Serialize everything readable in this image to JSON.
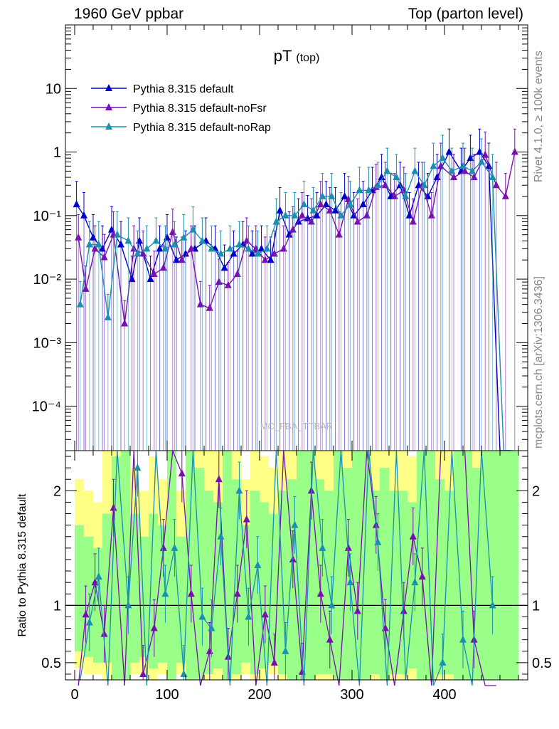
{
  "header": {
    "left": "1960 GeV ppbar",
    "right": "Top (parton level)"
  },
  "side_labels": {
    "rivet": "Rivet 4.1.0, ≥ 100k events",
    "mcplots": "mcplots.cern.ch [arXiv:1306.3436]"
  },
  "chart_data": [
    {
      "type": "line",
      "title": "pT (top)",
      "title_main": "pT",
      "title_sub": "(top)",
      "xlabel": "",
      "ylabel": "",
      "yscale": "log",
      "xlim": [
        -10,
        490
      ],
      "ylim": [
        2e-05,
        100
      ],
      "watermark": "MC_FBA_TTBAR",
      "ytick_values": [
        0.0001,
        0.001,
        0.01,
        0.1,
        1,
        10
      ],
      "ytick_labels": [
        "10⁻⁴",
        "10⁻³",
        "10⁻²",
        "10⁻¹",
        "1",
        "10"
      ],
      "legend": [
        "Pythia 8.315 default",
        "Pythia 8.315 default-noFsr",
        "Pythia 8.315 default-noRap"
      ],
      "colors": [
        "#0000cc",
        "#7a0fb0",
        "#1b8fb0"
      ],
      "series": [
        {
          "name": "Pythia 8.315 default",
          "x": [
            2,
            10,
            20,
            30,
            40,
            50,
            62,
            70,
            82,
            92,
            100,
            110,
            120,
            130,
            142,
            152,
            162,
            172,
            182,
            192,
            202,
            212,
            222,
            232,
            242,
            252,
            262,
            272,
            282,
            292,
            302,
            312,
            322,
            332,
            342,
            352,
            362,
            372,
            382,
            392,
            405,
            418,
            428,
            438,
            448,
            460,
            472
          ],
          "y": [
            0.15,
            0.1,
            0.045,
            0.03,
            0.06,
            0.035,
            0.01,
            0.04,
            0.01,
            0.03,
            0.045,
            0.02,
            0.025,
            0.03,
            0.04,
            0.03,
            0.015,
            0.025,
            0.035,
            0.025,
            0.03,
            0.02,
            0.12,
            0.05,
            0.08,
            0.09,
            0.1,
            0.15,
            0.12,
            0.2,
            0.1,
            0.15,
            0.25,
            0.4,
            0.2,
            0.3,
            0.1,
            0.3,
            0.2,
            0.4,
            1.0,
            0.5,
            0.8,
            1.0,
            0.6,
            0.0,
            0.0
          ]
        },
        {
          "name": "Pythia 8.315 default-noFsr",
          "x": [
            4,
            12,
            22,
            32,
            42,
            54,
            64,
            74,
            86,
            96,
            106,
            116,
            126,
            136,
            146,
            156,
            166,
            176,
            186,
            196,
            206,
            216,
            226,
            236,
            246,
            256,
            266,
            276,
            286,
            296,
            306,
            316,
            326,
            336,
            346,
            356,
            366,
            376,
            386,
            396,
            410,
            422,
            432,
            444,
            456,
            466,
            476
          ],
          "y": [
            0.045,
            0.007,
            0.03,
            0.022,
            0.05,
            0.002,
            0.03,
            0.025,
            0.012,
            0.015,
            0.055,
            0.02,
            0.03,
            0.004,
            0.0035,
            0.009,
            0.008,
            0.012,
            0.04,
            0.03,
            0.02,
            0.025,
            0.03,
            0.06,
            0.1,
            0.08,
            0.15,
            0.12,
            0.05,
            0.18,
            0.08,
            0.1,
            0.28,
            0.3,
            0.2,
            0.25,
            0.08,
            0.3,
            0.1,
            0.6,
            0.4,
            0.5,
            0.4,
            0.9,
            0.3,
            0.2,
            1.0
          ]
        },
        {
          "name": "Pythia 8.315 default-noRap",
          "x": [
            6,
            16,
            26,
            36,
            46,
            58,
            68,
            78,
            88,
            98,
            108,
            118,
            128,
            138,
            148,
            158,
            168,
            178,
            188,
            198,
            208,
            218,
            228,
            238,
            248,
            258,
            268,
            278,
            288,
            298,
            308,
            318,
            328,
            338,
            348,
            358,
            368,
            378,
            388,
            398,
            408,
            420,
            430,
            440,
            452,
            464,
            474
          ],
          "y": [
            0.004,
            0.035,
            0.035,
            0.0025,
            0.05,
            0.04,
            0.025,
            0.03,
            0.04,
            0.03,
            0.035,
            0.045,
            0.06,
            0.04,
            0.03,
            0.025,
            0.03,
            0.035,
            0.03,
            0.025,
            0.03,
            0.08,
            0.1,
            0.1,
            0.15,
            0.12,
            0.2,
            0.2,
            0.1,
            0.15,
            0.25,
            0.25,
            0.3,
            0.5,
            0.4,
            0.2,
            0.5,
            0.3,
            0.6,
            0.8,
            0.5,
            0.6,
            0.5,
            0.7,
            0.4,
            0.0,
            0.0
          ]
        }
      ]
    },
    {
      "type": "line",
      "title": "",
      "xlabel": "",
      "ylabel": "Ratio to Pythia 8.315 default",
      "xlim": [
        -10,
        490
      ],
      "ylim": [
        0.35,
        2.35
      ],
      "xtick_values": [
        0,
        100,
        200,
        300,
        400
      ],
      "xtick_labels": [
        "0",
        "100",
        "200",
        "300",
        "400"
      ],
      "ytick_values": [
        0.5,
        1,
        2
      ],
      "ytick_labels": [
        "0.5",
        "1",
        "2"
      ],
      "reference_line": 1,
      "band": {
        "x": [
          0,
          10,
          20,
          30,
          40,
          50,
          60,
          70,
          80,
          90,
          100,
          110,
          120,
          130,
          140,
          150,
          160,
          170,
          180,
          190,
          200,
          210,
          220,
          230,
          240,
          250,
          260,
          270,
          280,
          290,
          300,
          310,
          320,
          330,
          340,
          350,
          360,
          370,
          380,
          390,
          400,
          410,
          420,
          430,
          440,
          450,
          460,
          470
        ],
        "green_hi": [
          1.7,
          1.6,
          1.5,
          1.8,
          2.3,
          2.35,
          1.8,
          1.6,
          1.8,
          1.7,
          2.35,
          1.6,
          2.35,
          2.2,
          2.0,
          1.9,
          2.35,
          2.1,
          1.7,
          2.0,
          1.9,
          1.8,
          2.0,
          2.1,
          2.35,
          2.35,
          2.1,
          2.0,
          2.35,
          2.2,
          2.35,
          2.35,
          2.0,
          2.2,
          2.0,
          2.0,
          1.9,
          2.35,
          2.35,
          2.1,
          2.0,
          2.35,
          2.35,
          2.2,
          2.35,
          2.35,
          2.35,
          2.35
        ],
        "green_lo": [
          0.6,
          0.55,
          0.5,
          0.5,
          0.35,
          0.35,
          0.5,
          0.55,
          0.45,
          0.5,
          0.35,
          0.5,
          0.35,
          0.35,
          0.4,
          0.45,
          0.35,
          0.4,
          0.5,
          0.4,
          0.45,
          0.5,
          0.4,
          0.35,
          0.35,
          0.35,
          0.4,
          0.4,
          0.35,
          0.35,
          0.35,
          0.35,
          0.4,
          0.35,
          0.4,
          0.4,
          0.45,
          0.35,
          0.35,
          0.4,
          0.4,
          0.35,
          0.35,
          0.35,
          0.35,
          0.35,
          0.35,
          0.35
        ],
        "yellow_hi": [
          2.1,
          2.0,
          1.9,
          2.35,
          2.35,
          2.35,
          2.2,
          2.0,
          2.3,
          2.1,
          2.35,
          2.0,
          2.35,
          2.35,
          2.35,
          2.35,
          2.35,
          2.35,
          2.1,
          2.35,
          2.3,
          2.2,
          2.35,
          2.35,
          2.35,
          2.35,
          2.35,
          2.35,
          2.35,
          2.35,
          2.35,
          2.35,
          2.35,
          2.35,
          2.35,
          2.35,
          2.3,
          2.35,
          2.35,
          2.35,
          2.35,
          2.35,
          2.35,
          2.35,
          2.35,
          2.35,
          2.35,
          2.35
        ],
        "yellow_lo": [
          0.45,
          0.4,
          0.4,
          0.35,
          0.35,
          0.35,
          0.4,
          0.4,
          0.35,
          0.4,
          0.35,
          0.4,
          0.35,
          0.35,
          0.35,
          0.35,
          0.35,
          0.35,
          0.4,
          0.35,
          0.35,
          0.4,
          0.35,
          0.35,
          0.35,
          0.35,
          0.35,
          0.35,
          0.35,
          0.35,
          0.35,
          0.35,
          0.35,
          0.35,
          0.35,
          0.35,
          0.35,
          0.35,
          0.35,
          0.35,
          0.35,
          0.35,
          0.35,
          0.35,
          0.35,
          0.35,
          0.35,
          0.35
        ]
      },
      "series": [
        {
          "name": "Pythia 8.315 default-noFsr",
          "x": [
            4,
            12,
            22,
            32,
            42,
            54,
            64,
            74,
            86,
            96,
            106,
            116,
            126,
            136,
            146,
            156,
            166,
            176,
            186,
            196,
            206,
            216,
            226,
            236,
            246,
            256,
            266,
            276,
            286,
            296,
            306,
            316,
            326,
            336,
            346,
            356,
            366,
            376,
            386,
            396,
            410,
            422,
            432,
            444,
            456
          ],
          "y": [
            0.3,
            0.92,
            1.2,
            0.75,
            1.85,
            0.3,
            2.35,
            0.4,
            0.8,
            1.5,
            2.35,
            2.15,
            1.1,
            0.3,
            0.6,
            2.1,
            0.55,
            1.1,
            1.75,
            0.3,
            0.92,
            0.5,
            2.35,
            1.4,
            0.42,
            2.0,
            1.1,
            0.7,
            0.3,
            1.5,
            0.95,
            2.35,
            1.7,
            0.8,
            0.3,
            0.95,
            1.6,
            1.25,
            0.3,
            2.35,
            2.35,
            2.35,
            0.7,
            0.3,
            0.3
          ]
        },
        {
          "name": "Pythia 8.315 default-noRap",
          "x": [
            6,
            16,
            26,
            36,
            46,
            58,
            68,
            78,
            88,
            98,
            108,
            118,
            128,
            138,
            148,
            158,
            168,
            178,
            188,
            198,
            208,
            218,
            228,
            238,
            248,
            258,
            268,
            278,
            288,
            298,
            308,
            318,
            328,
            338,
            348,
            358,
            368,
            378,
            388,
            398,
            408,
            420,
            430,
            440,
            452
          ],
          "y": [
            0.35,
            0.85,
            1.25,
            0.3,
            2.35,
            1.0,
            2.2,
            0.3,
            2.35,
            1.1,
            1.5,
            0.4,
            2.35,
            0.9,
            0.8,
            1.6,
            0.3,
            2.0,
            0.9,
            1.35,
            0.3,
            2.35,
            0.6,
            1.7,
            0.3,
            2.35,
            1.5,
            1.0,
            2.35,
            1.2,
            0.3,
            2.35,
            1.55,
            0.3,
            2.35,
            0.35,
            1.2,
            2.35,
            0.3,
            0.5,
            2.35,
            0.7,
            0.3,
            2.35,
            1.0
          ]
        }
      ]
    }
  ]
}
